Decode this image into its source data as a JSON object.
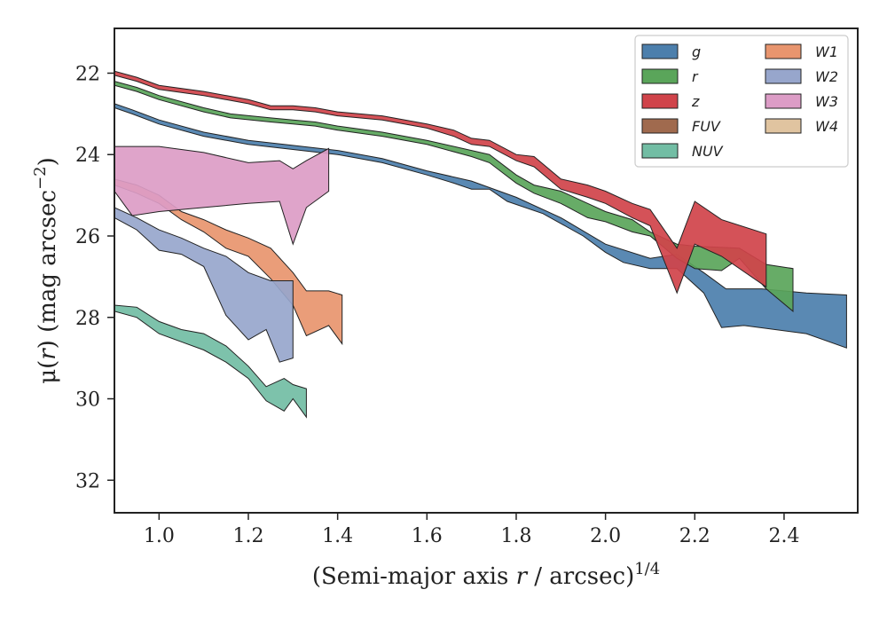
{
  "chart_data": {
    "type": "area",
    "xlabel_parts": [
      "(Semi-major axis ",
      "r",
      " / arcsec)",
      "1/4"
    ],
    "ylabel_parts": [
      "μ(",
      "r",
      ") (mag arcsec",
      "−2",
      ")"
    ],
    "xlim": [
      0.9,
      2.565
    ],
    "ylim": [
      32.8,
      20.9
    ],
    "y_inverted": true,
    "xticks": [
      1.0,
      1.2,
      1.4,
      1.6,
      1.8,
      2.0,
      2.2,
      2.4
    ],
    "xtick_labels": [
      "1.0",
      "1.2",
      "1.4",
      "1.6",
      "1.8",
      "2.0",
      "2.2",
      "2.4"
    ],
    "yticks": [
      22,
      24,
      26,
      28,
      30,
      32
    ],
    "ytick_labels": [
      "22",
      "24",
      "26",
      "28",
      "30",
      "32"
    ],
    "grid": false,
    "legend": {
      "placement": "top-right",
      "columns": 2
    },
    "series": [
      {
        "name": "g",
        "color": "#4c7fac",
        "upper": [
          [
            0.9,
            22.75
          ],
          [
            0.94,
            22.9
          ],
          [
            1.0,
            23.15
          ],
          [
            1.1,
            23.45
          ],
          [
            1.2,
            23.65
          ],
          [
            1.28,
            23.75
          ],
          [
            1.4,
            23.9
          ],
          [
            1.5,
            24.1
          ],
          [
            1.6,
            24.4
          ],
          [
            1.7,
            24.65
          ],
          [
            1.8,
            25.05
          ],
          [
            1.9,
            25.55
          ],
          [
            2.0,
            26.2
          ],
          [
            2.1,
            26.55
          ],
          [
            2.16,
            26.45
          ],
          [
            2.22,
            26.9
          ],
          [
            2.27,
            27.3
          ],
          [
            2.35,
            27.3
          ],
          [
            2.45,
            27.4
          ],
          [
            2.54,
            27.45
          ]
        ],
        "lower": [
          [
            0.9,
            22.85
          ],
          [
            0.94,
            23.0
          ],
          [
            1.0,
            23.25
          ],
          [
            1.1,
            23.55
          ],
          [
            1.2,
            23.75
          ],
          [
            1.28,
            23.85
          ],
          [
            1.4,
            24.0
          ],
          [
            1.5,
            24.2
          ],
          [
            1.6,
            24.5
          ],
          [
            1.66,
            24.7
          ],
          [
            1.7,
            24.85
          ],
          [
            1.74,
            24.85
          ],
          [
            1.78,
            25.15
          ],
          [
            1.86,
            25.45
          ],
          [
            1.95,
            26.0
          ],
          [
            2.0,
            26.4
          ],
          [
            2.04,
            26.65
          ],
          [
            2.1,
            26.8
          ],
          [
            2.16,
            26.8
          ],
          [
            2.22,
            27.4
          ],
          [
            2.26,
            28.25
          ],
          [
            2.31,
            28.2
          ],
          [
            2.45,
            28.4
          ],
          [
            2.54,
            28.75
          ]
        ]
      },
      {
        "name": "r",
        "color": "#5aa55a",
        "upper": [
          [
            0.9,
            22.2
          ],
          [
            0.95,
            22.35
          ],
          [
            1.0,
            22.55
          ],
          [
            1.1,
            22.85
          ],
          [
            1.16,
            23.0
          ],
          [
            1.25,
            23.1
          ],
          [
            1.3,
            23.15
          ],
          [
            1.35,
            23.2
          ],
          [
            1.4,
            23.3
          ],
          [
            1.5,
            23.45
          ],
          [
            1.6,
            23.65
          ],
          [
            1.7,
            23.9
          ],
          [
            1.74,
            24.0
          ],
          [
            1.8,
            24.5
          ],
          [
            1.84,
            24.75
          ],
          [
            1.9,
            24.9
          ],
          [
            1.96,
            25.2
          ],
          [
            2.0,
            25.4
          ],
          [
            2.06,
            25.6
          ],
          [
            2.1,
            25.9
          ],
          [
            2.16,
            26.2
          ],
          [
            2.2,
            26.25
          ],
          [
            2.3,
            26.3
          ],
          [
            2.36,
            26.7
          ],
          [
            2.42,
            26.8
          ]
        ],
        "lower": [
          [
            0.9,
            22.3
          ],
          [
            0.95,
            22.45
          ],
          [
            1.0,
            22.65
          ],
          [
            1.1,
            22.95
          ],
          [
            1.16,
            23.1
          ],
          [
            1.25,
            23.2
          ],
          [
            1.3,
            23.25
          ],
          [
            1.35,
            23.3
          ],
          [
            1.4,
            23.4
          ],
          [
            1.5,
            23.55
          ],
          [
            1.6,
            23.75
          ],
          [
            1.7,
            24.05
          ],
          [
            1.74,
            24.2
          ],
          [
            1.8,
            24.7
          ],
          [
            1.84,
            24.95
          ],
          [
            1.9,
            25.2
          ],
          [
            1.96,
            25.55
          ],
          [
            2.0,
            25.65
          ],
          [
            2.06,
            25.9
          ],
          [
            2.1,
            26.0
          ],
          [
            2.16,
            26.55
          ],
          [
            2.2,
            26.8
          ],
          [
            2.26,
            26.85
          ],
          [
            2.3,
            26.55
          ],
          [
            2.36,
            27.3
          ],
          [
            2.42,
            27.85
          ]
        ]
      },
      {
        "name": "z",
        "color": "#d0434a",
        "upper": [
          [
            0.9,
            21.95
          ],
          [
            0.95,
            22.1
          ],
          [
            1.0,
            22.3
          ],
          [
            1.1,
            22.45
          ],
          [
            1.2,
            22.65
          ],
          [
            1.25,
            22.8
          ],
          [
            1.3,
            22.8
          ],
          [
            1.35,
            22.85
          ],
          [
            1.4,
            22.95
          ],
          [
            1.5,
            23.05
          ],
          [
            1.6,
            23.25
          ],
          [
            1.66,
            23.4
          ],
          [
            1.7,
            23.6
          ],
          [
            1.74,
            23.65
          ],
          [
            1.8,
            24.0
          ],
          [
            1.84,
            24.05
          ],
          [
            1.9,
            24.6
          ],
          [
            1.96,
            24.75
          ],
          [
            2.0,
            24.9
          ],
          [
            2.06,
            25.2
          ],
          [
            2.1,
            25.35
          ],
          [
            2.16,
            26.3
          ],
          [
            2.2,
            25.15
          ],
          [
            2.26,
            25.6
          ],
          [
            2.36,
            25.95
          ]
        ],
        "lower": [
          [
            0.9,
            22.05
          ],
          [
            0.95,
            22.2
          ],
          [
            1.0,
            22.4
          ],
          [
            1.1,
            22.55
          ],
          [
            1.2,
            22.75
          ],
          [
            1.25,
            22.9
          ],
          [
            1.3,
            22.9
          ],
          [
            1.35,
            22.95
          ],
          [
            1.4,
            23.05
          ],
          [
            1.5,
            23.15
          ],
          [
            1.6,
            23.35
          ],
          [
            1.66,
            23.55
          ],
          [
            1.7,
            23.75
          ],
          [
            1.74,
            23.8
          ],
          [
            1.8,
            24.15
          ],
          [
            1.84,
            24.3
          ],
          [
            1.9,
            24.85
          ],
          [
            1.96,
            25.05
          ],
          [
            2.0,
            25.2
          ],
          [
            2.06,
            25.55
          ],
          [
            2.1,
            25.75
          ],
          [
            2.16,
            27.4
          ],
          [
            2.2,
            26.2
          ],
          [
            2.26,
            26.5
          ],
          [
            2.36,
            27.25
          ]
        ]
      },
      {
        "name": "FUV",
        "color": "#a06a4e",
        "upper": [],
        "lower": []
      },
      {
        "name": "NUV",
        "color": "#72bda4",
        "upper": [
          [
            0.9,
            27.7
          ],
          [
            0.95,
            27.75
          ],
          [
            1.0,
            28.1
          ],
          [
            1.05,
            28.3
          ],
          [
            1.1,
            28.4
          ],
          [
            1.15,
            28.7
          ],
          [
            1.2,
            29.2
          ],
          [
            1.24,
            29.7
          ],
          [
            1.28,
            29.5
          ],
          [
            1.3,
            29.65
          ],
          [
            1.33,
            29.75
          ]
        ],
        "lower": [
          [
            0.9,
            27.85
          ],
          [
            0.95,
            28.0
          ],
          [
            1.0,
            28.4
          ],
          [
            1.05,
            28.6
          ],
          [
            1.1,
            28.8
          ],
          [
            1.15,
            29.1
          ],
          [
            1.2,
            29.5
          ],
          [
            1.24,
            30.05
          ],
          [
            1.28,
            30.3
          ],
          [
            1.3,
            30.0
          ],
          [
            1.33,
            30.45
          ]
        ]
      },
      {
        "name": "W1",
        "color": "#e8956e",
        "upper": [
          [
            0.9,
            24.6
          ],
          [
            0.95,
            24.75
          ],
          [
            1.0,
            25.0
          ],
          [
            1.05,
            25.4
          ],
          [
            1.1,
            25.6
          ],
          [
            1.15,
            25.85
          ],
          [
            1.2,
            26.05
          ],
          [
            1.25,
            26.3
          ],
          [
            1.3,
            26.9
          ],
          [
            1.33,
            27.35
          ],
          [
            1.38,
            27.35
          ],
          [
            1.41,
            27.45
          ]
        ],
        "lower": [
          [
            0.9,
            24.75
          ],
          [
            0.95,
            24.95
          ],
          [
            1.0,
            25.2
          ],
          [
            1.05,
            25.6
          ],
          [
            1.1,
            25.9
          ],
          [
            1.15,
            26.3
          ],
          [
            1.2,
            26.5
          ],
          [
            1.25,
            27.05
          ],
          [
            1.3,
            27.7
          ],
          [
            1.33,
            28.45
          ],
          [
            1.38,
            28.2
          ],
          [
            1.41,
            28.65
          ]
        ]
      },
      {
        "name": "W2",
        "color": "#97a6cc",
        "upper": [
          [
            0.9,
            25.3
          ],
          [
            0.95,
            25.55
          ],
          [
            1.0,
            25.85
          ],
          [
            1.05,
            26.05
          ],
          [
            1.1,
            26.3
          ],
          [
            1.15,
            26.5
          ],
          [
            1.2,
            26.9
          ],
          [
            1.25,
            27.1
          ],
          [
            1.3,
            27.1
          ]
        ],
        "lower": [
          [
            0.9,
            25.55
          ],
          [
            0.95,
            25.85
          ],
          [
            1.0,
            26.35
          ],
          [
            1.05,
            26.45
          ],
          [
            1.1,
            26.75
          ],
          [
            1.15,
            27.95
          ],
          [
            1.2,
            28.55
          ],
          [
            1.24,
            28.3
          ],
          [
            1.27,
            29.1
          ],
          [
            1.3,
            29.0
          ]
        ]
      },
      {
        "name": "W3",
        "color": "#dc9cc6",
        "upper": [
          [
            0.9,
            23.8
          ],
          [
            1.0,
            23.8
          ],
          [
            1.1,
            23.95
          ],
          [
            1.2,
            24.2
          ],
          [
            1.27,
            24.15
          ],
          [
            1.3,
            24.35
          ],
          [
            1.33,
            24.15
          ],
          [
            1.38,
            23.85
          ]
        ],
        "lower": [
          [
            0.9,
            24.9
          ],
          [
            0.94,
            25.5
          ],
          [
            1.0,
            25.4
          ],
          [
            1.1,
            25.3
          ],
          [
            1.2,
            25.2
          ],
          [
            1.27,
            25.15
          ],
          [
            1.3,
            26.2
          ],
          [
            1.33,
            25.3
          ],
          [
            1.38,
            24.9
          ]
        ]
      },
      {
        "name": "W4",
        "color": "#e0c4a0",
        "upper": [],
        "lower": []
      }
    ]
  }
}
